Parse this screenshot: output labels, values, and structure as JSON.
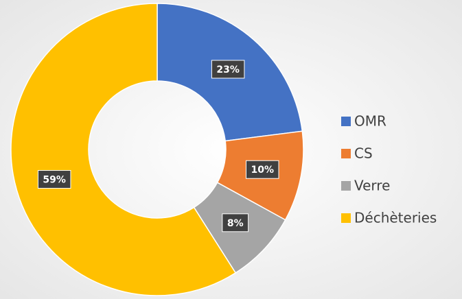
{
  "chart_data": {
    "type": "donut",
    "categories": [
      "OMR",
      "CS",
      "Verre",
      "Déchèteries"
    ],
    "values": [
      23,
      10,
      8,
      59
    ],
    "value_labels": [
      "23%",
      "10%",
      "8%",
      "59%"
    ],
    "colors": [
      "#4472c4",
      "#ed7d31",
      "#a5a5a5",
      "#ffc000"
    ],
    "legend": "right"
  }
}
